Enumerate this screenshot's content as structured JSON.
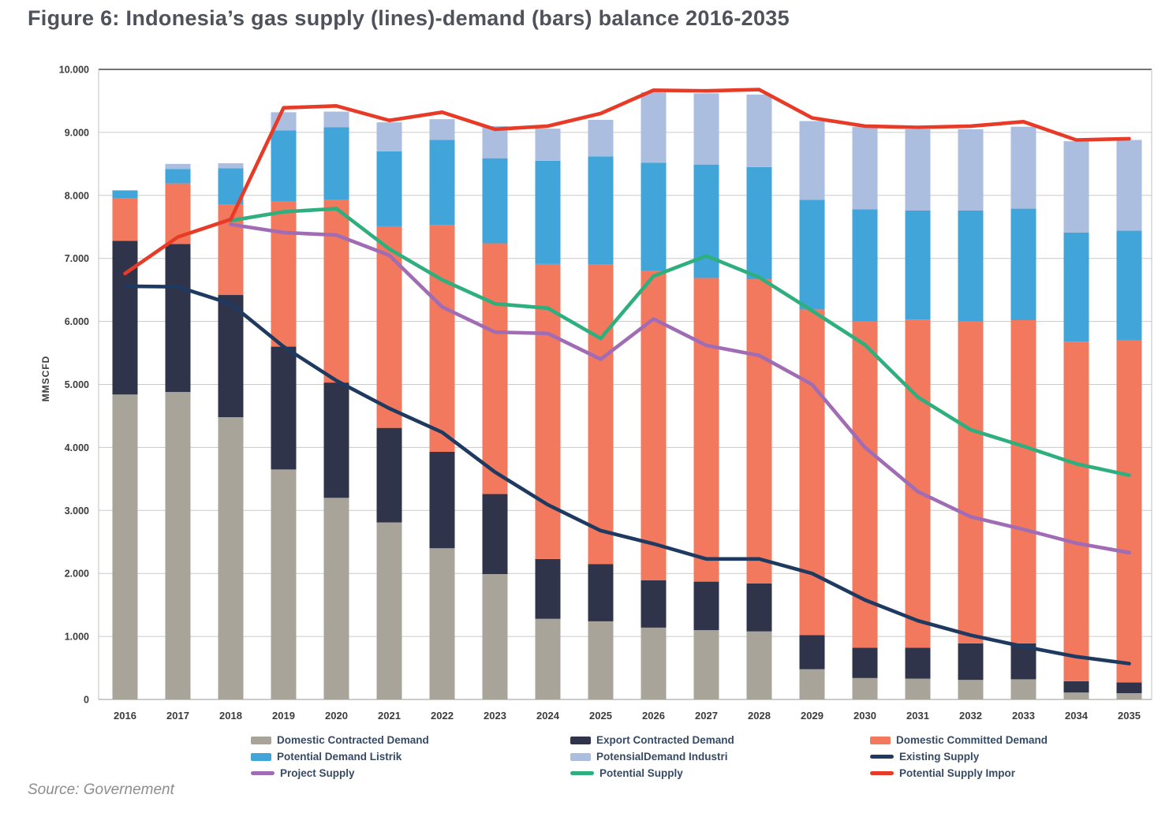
{
  "figure": {
    "title": "Figure 6: Indonesia’s gas supply (lines)-demand (bars) balance 2016-2035",
    "source": "Source: Governement"
  },
  "chart_data": {
    "type": "bar",
    "subtype": "stacked-bars-with-lines",
    "title": "Figure 6: Indonesia’s gas supply (lines)-demand (bars) balance 2016-2035",
    "xlabel": "",
    "ylabel": "MMSCFD",
    "ylim": [
      0,
      10000
    ],
    "grid": true,
    "legend_position": "bottom",
    "ytick_labels": [
      "0",
      "1.000",
      "2.000",
      "3.000",
      "4.000",
      "5.000",
      "6.000",
      "7.000",
      "8.000",
      "9.000",
      "10.000"
    ],
    "categories": [
      "2016",
      "2017",
      "2018",
      "2019",
      "2020",
      "2021",
      "2022",
      "2023",
      "2024",
      "2025",
      "2026",
      "2027",
      "2028",
      "2029",
      "2030",
      "2031",
      "2032",
      "2033",
      "2034",
      "2035"
    ],
    "bar_series": [
      {
        "name": "Domestic Contracted Demand",
        "color": "#a8a49a",
        "values": [
          4840,
          4880,
          4480,
          3650,
          3200,
          2810,
          2400,
          1990,
          1280,
          1240,
          1140,
          1100,
          1080,
          480,
          340,
          330,
          310,
          320,
          110,
          100
        ]
      },
      {
        "name": "Export Contracted Demand",
        "color": "#30344a",
        "values": [
          2440,
          2350,
          1940,
          1950,
          1830,
          1500,
          1530,
          1270,
          950,
          910,
          750,
          770,
          760,
          540,
          480,
          490,
          580,
          570,
          180,
          170
        ]
      },
      {
        "name": "Domestic Committed Demand",
        "color": "#f2795d",
        "values": [
          670,
          960,
          1430,
          2310,
          2900,
          3200,
          3600,
          3980,
          4680,
          4750,
          4910,
          4820,
          4830,
          5170,
          5180,
          5210,
          5110,
          5130,
          5390,
          5430
        ]
      },
      {
        "name": "Potential Demand Listrik",
        "color": "#41a5da",
        "values": [
          130,
          230,
          580,
          1120,
          1150,
          1190,
          1350,
          1350,
          1640,
          1720,
          1720,
          1800,
          1780,
          1740,
          1780,
          1730,
          1760,
          1770,
          1730,
          1740
        ]
      },
      {
        "name": "PotensialDemand Industri",
        "color": "#abbedf",
        "values": [
          0,
          80,
          80,
          290,
          250,
          460,
          330,
          510,
          510,
          580,
          1120,
          1130,
          1150,
          1250,
          1310,
          1290,
          1290,
          1300,
          1450,
          1440
        ]
      }
    ],
    "line_series": [
      {
        "name": "Existing Supply",
        "color": "#1f3a60",
        "values": [
          6560,
          6550,
          6280,
          5600,
          5060,
          4620,
          4240,
          3610,
          3090,
          2680,
          2470,
          2230,
          2230,
          2000,
          1580,
          1250,
          1020,
          840,
          680,
          570
        ]
      },
      {
        "name": "Project Supply",
        "color": "#a06cb4",
        "values": [
          null,
          null,
          7540,
          7410,
          7370,
          7050,
          6230,
          5830,
          5810,
          5400,
          6040,
          5620,
          5460,
          5000,
          4000,
          3300,
          2900,
          2700,
          2480,
          2330
        ]
      },
      {
        "name": "Potential Supply",
        "color": "#2fae7e",
        "values": [
          null,
          null,
          7600,
          7740,
          7790,
          7150,
          6660,
          6280,
          6210,
          5730,
          6720,
          7040,
          6700,
          6170,
          5630,
          4800,
          4280,
          4020,
          3740,
          3560
        ]
      },
      {
        "name": "Potential Supply Impor",
        "color": "#e73b28",
        "values": [
          6760,
          7340,
          7620,
          9390,
          9420,
          9190,
          9320,
          9050,
          9100,
          9300,
          9670,
          9660,
          9680,
          9230,
          9100,
          9080,
          9100,
          9170,
          8880,
          8900
        ]
      }
    ],
    "legend_columns": [
      [
        {
          "label": "Domestic Contracted Demand",
          "swatch": "bar"
        },
        {
          "label": "Potential Demand Listrik",
          "swatch": "bar"
        },
        {
          "label": "Project Supply",
          "swatch": "line"
        }
      ],
      [
        {
          "label": "Export Contracted Demand",
          "swatch": "bar"
        },
        {
          "label": "PotensialDemand Industri",
          "swatch": "bar"
        },
        {
          "label": "Potential Supply",
          "swatch": "line"
        }
      ],
      [
        {
          "label": "Domestic Committed Demand",
          "swatch": "bar"
        },
        {
          "label": "Existing Supply",
          "swatch": "line"
        },
        {
          "label": "Potential Supply Impor",
          "swatch": "line"
        }
      ]
    ]
  }
}
